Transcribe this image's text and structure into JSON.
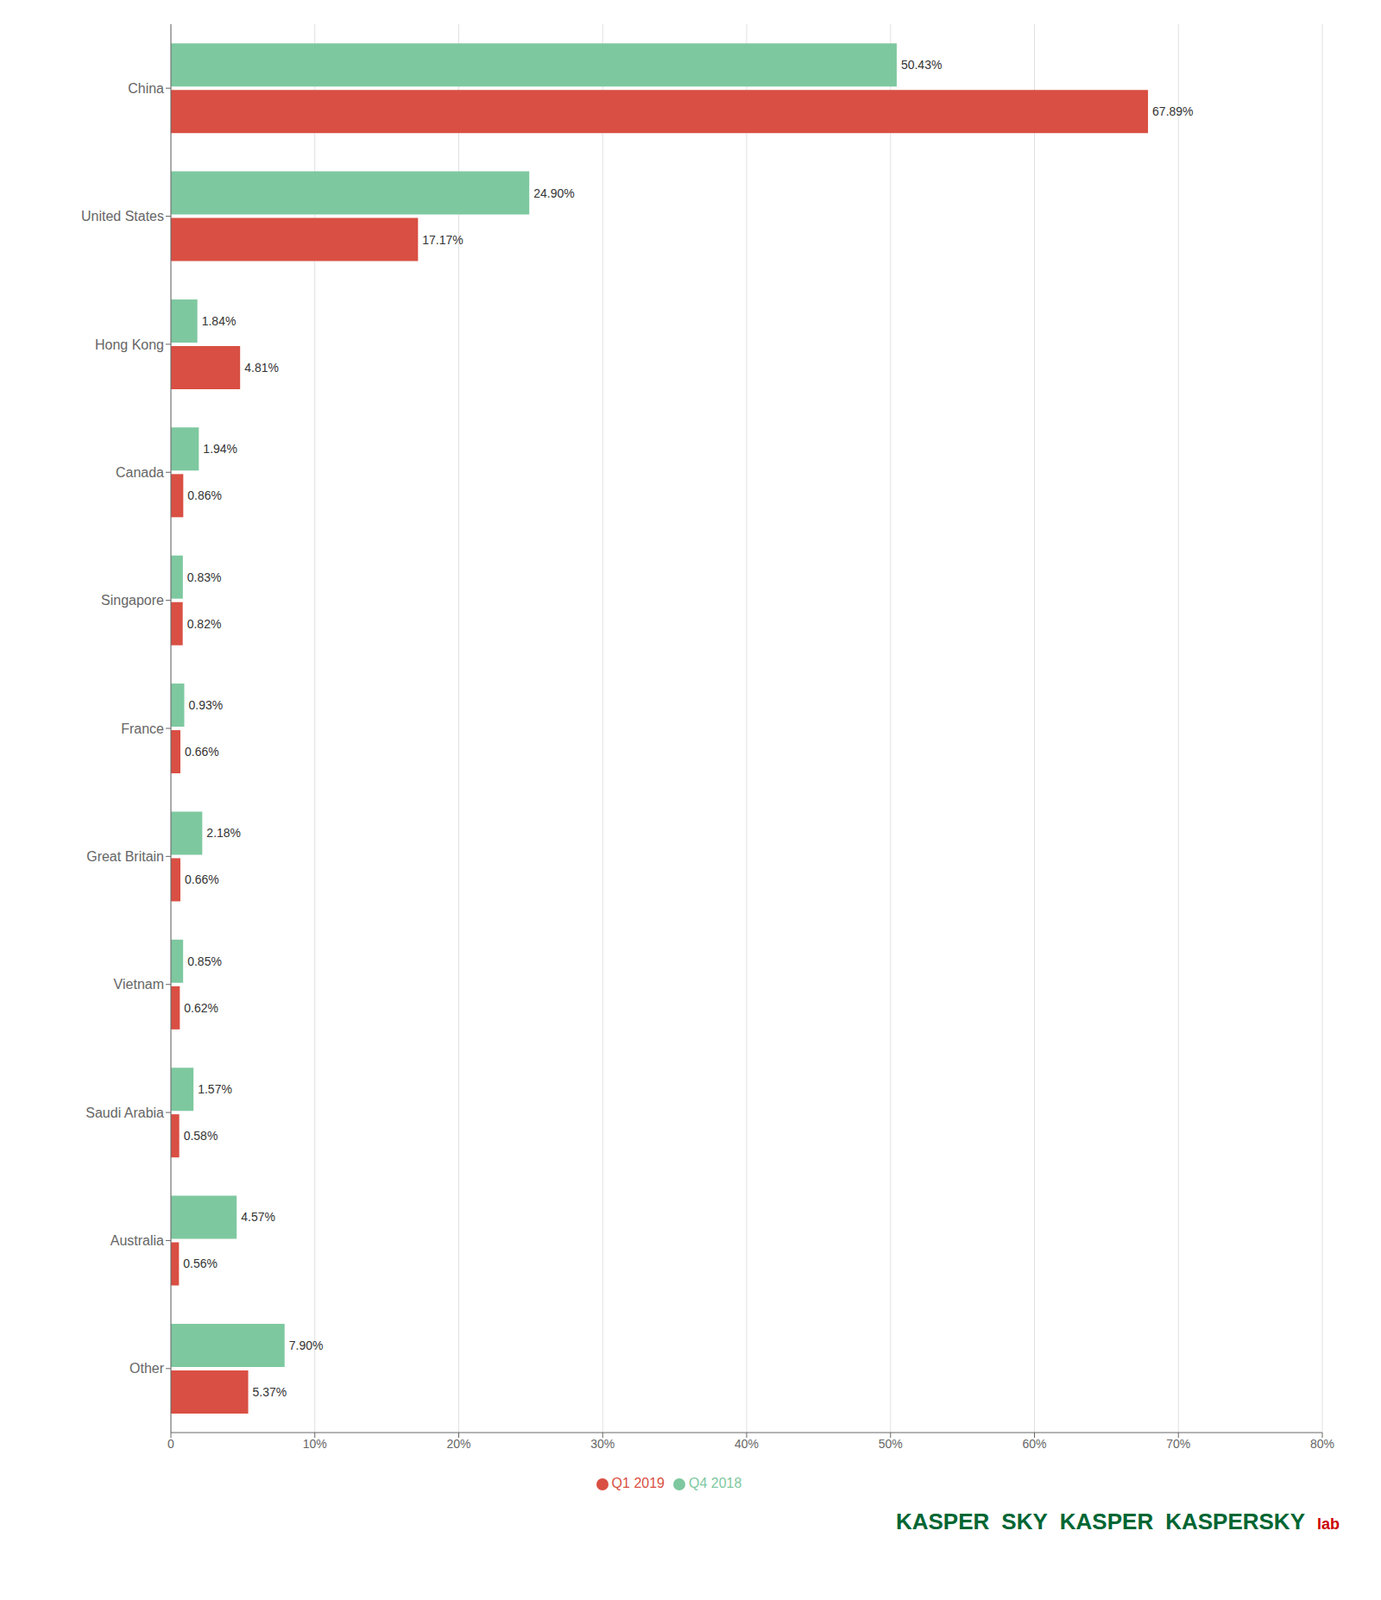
{
  "chart_data": {
    "type": "bar",
    "orientation": "horizontal",
    "categories": [
      "China",
      "United States",
      "Hong Kong",
      "Canada",
      "Singapore",
      "France",
      "Great Britain",
      "Vietnam",
      "Saudi Arabia",
      "Australia",
      "Other"
    ],
    "series": [
      {
        "name": "Q4 2018",
        "color": "#7ec8a0",
        "values": [
          50.43,
          24.9,
          1.84,
          1.94,
          0.83,
          0.93,
          2.18,
          0.85,
          1.57,
          4.57,
          7.9
        ],
        "value_labels": [
          "50.43%",
          "24.90%",
          "1.84%",
          "1.94%",
          "0.83%",
          "0.93%",
          "2.18%",
          "0.85%",
          "1.57%",
          "4.57%",
          "7.90%"
        ]
      },
      {
        "name": "Q1 2019",
        "color": "#d94f43",
        "values": [
          67.89,
          17.17,
          4.81,
          0.86,
          0.82,
          0.66,
          0.66,
          0.62,
          0.58,
          0.56,
          5.37
        ],
        "value_labels": [
          "67.89%",
          "17.17%",
          "4.81%",
          "0.86%",
          "0.82%",
          "0.66%",
          "0.66%",
          "0.62%",
          "0.58%",
          "0.56%",
          "5.37%"
        ]
      }
    ],
    "xlim": [
      0,
      80
    ],
    "xticks": [
      0,
      {
        "value": 10,
        "label": "10%"
      },
      {
        "value": 20,
        "label": "20%"
      },
      {
        "value": 30,
        "label": "30%"
      },
      {
        "value": 40,
        "label": "40%"
      },
      {
        "value": 50,
        "label": "50%"
      },
      {
        "value": 60,
        "label": "60%"
      },
      {
        "value": 70,
        "label": "70%"
      },
      {
        "value": 80,
        "label": "80%"
      }
    ],
    "grid": true,
    "legend": "bottom",
    "data_labels": true,
    "annotations": [
      {
        "text": "KASPER",
        "color": "#006633"
      },
      {
        "text": "SKY",
        "color": "#006633"
      },
      {
        "text": "KASPER",
        "color": "#006633"
      },
      {
        "text": "KASPERSKY",
        "color": "#006633"
      },
      {
        "text": "lab",
        "color": "#cc0000"
      }
    ]
  }
}
